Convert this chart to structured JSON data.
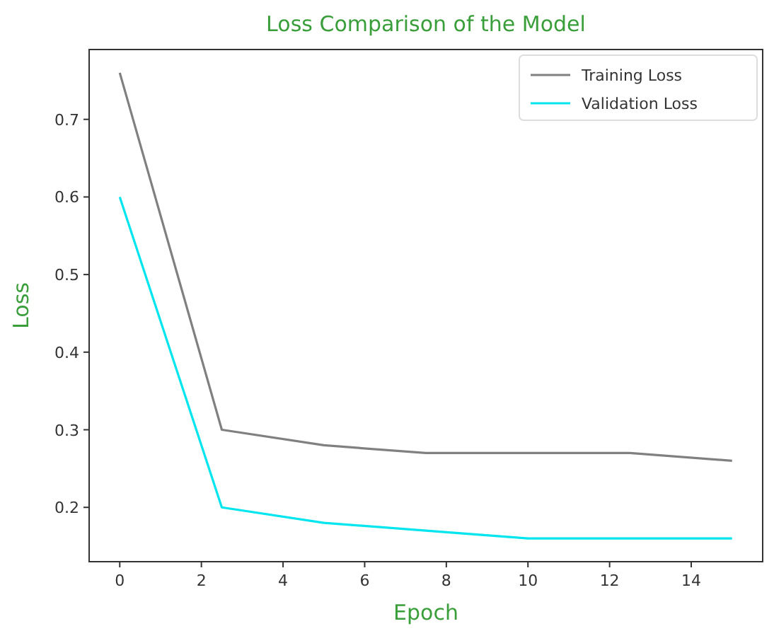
{
  "chart_data": {
    "type": "line",
    "title": "Loss Comparison of the Model",
    "xlabel": "Epoch",
    "ylabel": "Loss",
    "x": [
      0,
      2.5,
      5,
      7.5,
      10,
      12.5,
      15
    ],
    "series": [
      {
        "name": "Training Loss",
        "color": "#808080",
        "values": [
          0.76,
          0.3,
          0.28,
          0.27,
          0.27,
          0.27,
          0.26
        ]
      },
      {
        "name": "Validation Loss",
        "color": "#00e5ee",
        "values": [
          0.6,
          0.2,
          0.18,
          0.17,
          0.16,
          0.16,
          0.16
        ]
      }
    ],
    "xlim": [
      -0.75,
      15.75
    ],
    "ylim": [
      0.13,
      0.79
    ],
    "xticks": [
      0,
      2,
      4,
      6,
      8,
      10,
      12,
      14
    ],
    "yticks": [
      0.2,
      0.3,
      0.4,
      0.5,
      0.6,
      0.7
    ],
    "legend": "top right",
    "grid": false,
    "marker": "none",
    "line_style": "solid"
  }
}
